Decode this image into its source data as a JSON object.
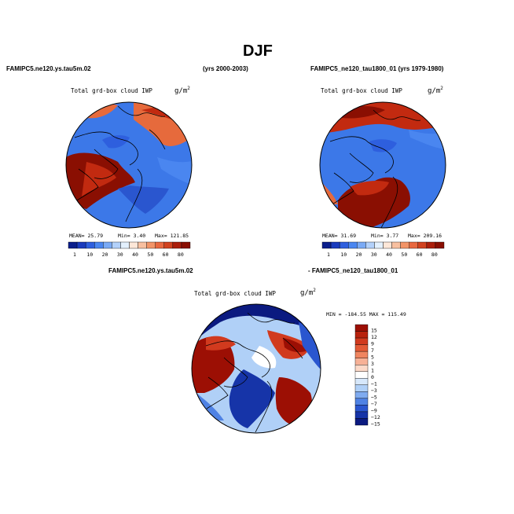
{
  "title": "DJF",
  "left_panel": {
    "case_label": "FAMIPC5.ne120.ys.tau5m.02",
    "years_label": "(yrs 2000-2003)",
    "var_label": "Total grd-box cloud IWP",
    "units_base": "g/m",
    "units_exp": "2",
    "stats": {
      "mean": "MEAN=  25.79",
      "min": "Min=   3.40",
      "max": "Max= 121.85"
    }
  },
  "right_panel": {
    "case_label": "FAMIPC5_ne120_tau1800_01 (yrs 1979-1980)",
    "var_label": "Total grd-box cloud IWP",
    "units_base": "g/m",
    "units_exp": "2",
    "stats": {
      "mean": "MEAN=  31.69",
      "min": "Min=   3.77",
      "max": "Max= 209.16"
    }
  },
  "diff_panel": {
    "case_a": "FAMIPC5.ne120.ys.tau5m.02",
    "case_b": "- FAMIPC5_ne120_tau1800_01",
    "var_label": "Total grd-box cloud IWP",
    "units_base": "g/m",
    "units_exp": "2",
    "minmax": "MIN = -184.55  MAX = 115.49"
  },
  "abs_colorbar": {
    "colors": [
      "#0b1f8c",
      "#1a3bbd",
      "#2e5fde",
      "#4a86f0",
      "#7aaaf5",
      "#b3d1fa",
      "#e3f0fd",
      "#fde7d8",
      "#f8c0a0",
      "#f29468",
      "#e8683f",
      "#d1421f",
      "#ab1e0b",
      "#8a0f02"
    ],
    "labels": [
      "1",
      "10",
      "20",
      "30",
      "40",
      "50",
      "60",
      "80"
    ]
  },
  "diff_colorbar": {
    "colors": [
      "#9c0f04",
      "#b8220d",
      "#d13a1e",
      "#e35a36",
      "#f08560",
      "#f7b196",
      "#fcd9c8",
      "#ffffff",
      "#d7e8fb",
      "#b0d0f7",
      "#7fabf0",
      "#4f82e4",
      "#2a56cf",
      "#1634a8",
      "#0b1a80"
    ],
    "labels": [
      "15",
      "12",
      "9",
      "7",
      "5",
      "3",
      "1",
      "0",
      "−1",
      "−3",
      "−5",
      "−7",
      "−9",
      "−12",
      "−15"
    ]
  },
  "map_colors": {
    "deep_red": "#8a0f02",
    "red": "#c22a10",
    "orange": "#e66a3c",
    "blue": "#3c78e8",
    "mid_blue": "#2a56cf",
    "light_blue": "#b3d1fa",
    "dark_blue": "#0b1a80",
    "white": "#f4f8ff"
  }
}
